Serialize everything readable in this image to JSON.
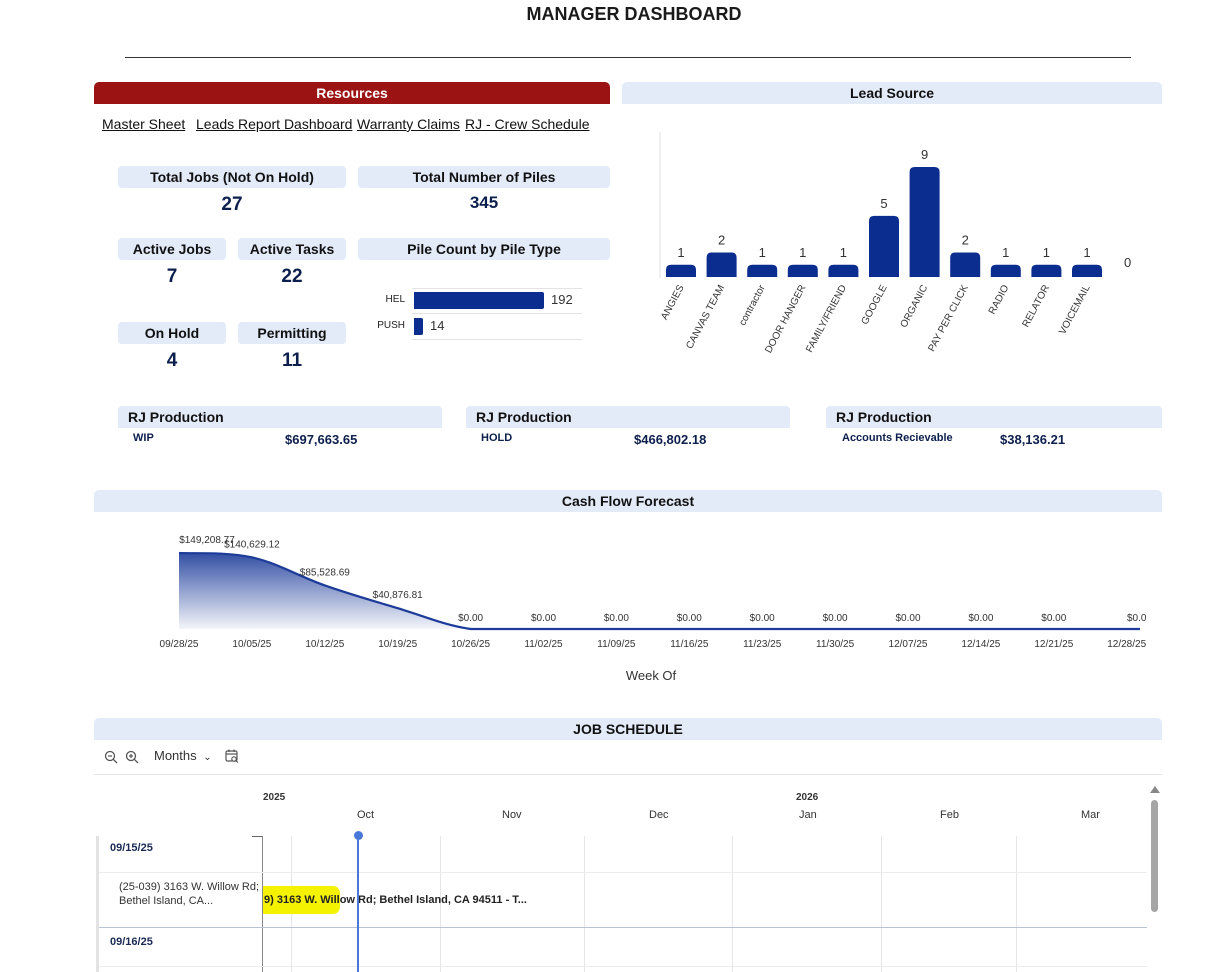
{
  "page_title": "MANAGER DASHBOARD",
  "resources": {
    "header": "Resources",
    "links": [
      "Master Sheet",
      "Leads Report Dashboard",
      "Warranty Claims",
      "RJ - Crew Schedule"
    ]
  },
  "kpis": {
    "total_jobs": {
      "label": "Total Jobs (Not On Hold)",
      "value": "27"
    },
    "total_piles": {
      "label": "Total Number of Piles",
      "value": "345"
    },
    "active_jobs": {
      "label": "Active Jobs",
      "value": "7"
    },
    "active_tasks": {
      "label": "Active Tasks",
      "value": "22"
    },
    "on_hold": {
      "label": "On Hold",
      "value": "4"
    },
    "permitting": {
      "label": "Permitting",
      "value": "11"
    }
  },
  "pile_chart": {
    "title": "Pile Count by Pile Type",
    "rows": [
      {
        "label": "HEL",
        "value": 192,
        "text": "192"
      },
      {
        "label": "PUSH",
        "value": 14,
        "text": "14"
      }
    ],
    "max": 192
  },
  "lead_source": {
    "header": "Lead Source"
  },
  "production": [
    {
      "title": "RJ Production",
      "label": "WIP",
      "value": "$697,663.65"
    },
    {
      "title": "RJ Production",
      "label": "HOLD",
      "value": "$466,802.18"
    },
    {
      "title": "RJ Production",
      "label": "Accounts Recievable",
      "value": "$38,136.21"
    }
  ],
  "cash_flow": {
    "header": "Cash Flow Forecast",
    "xlabel": "Week Of"
  },
  "chart_data": [
    {
      "type": "bar",
      "categories": [
        "ANGIES",
        "CANVAS TEAM",
        "contractor",
        "DOOR HANGER",
        "FAMILY/FRIEND",
        "GOOGLE",
        "ORGANIC",
        "PAY PER CLICK",
        "RADIO",
        "RELATOR",
        "VOICEMAIL",
        ""
      ],
      "values": [
        1,
        2,
        1,
        1,
        1,
        5,
        9,
        2,
        1,
        1,
        1,
        0
      ],
      "title": "Lead Source",
      "ylim": [
        0,
        9
      ],
      "grid": false
    },
    {
      "type": "area",
      "x": [
        "09/28/25",
        "10/05/25",
        "10/12/25",
        "10/19/25",
        "10/26/25",
        "11/02/25",
        "11/09/25",
        "11/16/25",
        "11/23/25",
        "11/30/25",
        "12/07/25",
        "12/14/25",
        "12/21/25",
        "12/28/25"
      ],
      "values": [
        149208.77,
        140629.12,
        85528.69,
        40876.81,
        0,
        0,
        0,
        0,
        0,
        0,
        0,
        0,
        0,
        0
      ],
      "labels": [
        "$149,208.77",
        "$140,629.12",
        "$85,528.69",
        "$40,876.81",
        "$0.00",
        "$0.00",
        "$0.00",
        "$0.00",
        "$0.00",
        "$0.00",
        "$0.00",
        "$0.00",
        "$0.00",
        "$0.0"
      ],
      "title": "Cash Flow Forecast",
      "xlabel": "Week Of",
      "grid": false
    }
  ],
  "job_schedule": {
    "header": "JOB SCHEDULE",
    "zoom_out_icon": "zoom-out-icon",
    "zoom_in_icon": "zoom-in-icon",
    "view_mode": "Months",
    "calendar_icon": "calendar-search-icon",
    "years": [
      "2025",
      "2026"
    ],
    "months": [
      "Oct",
      "Nov",
      "Dec",
      "Jan",
      "Feb",
      "Mar"
    ],
    "groups": [
      "09/15/25",
      "09/16/25"
    ],
    "task_label": "(25-039) 3163 W. Willow Rd; Bethel Island, CA...",
    "task_bar_text": "9) 3163 W. Willow Rd; Bethel Island, CA 94511 - T..."
  }
}
